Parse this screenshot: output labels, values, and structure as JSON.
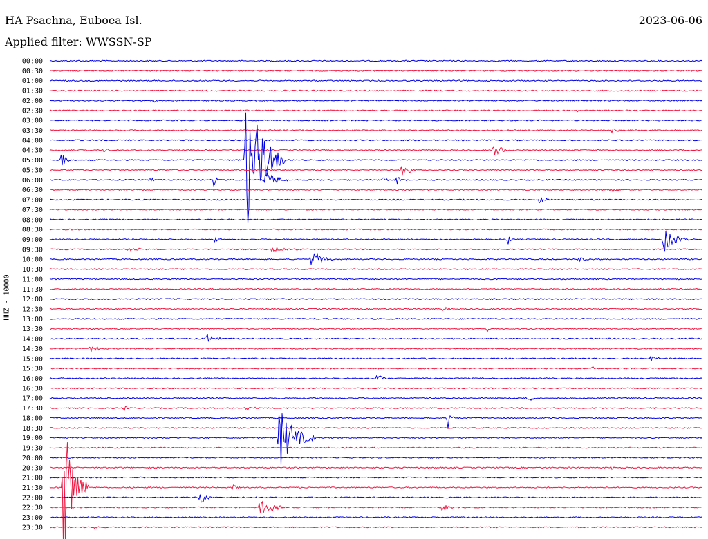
{
  "header": {
    "station": "HA Psachna, Euboea Isl.",
    "filter_label": "Applied filter:",
    "filter_value": "WWSSN-SP",
    "date": "2023-06-06"
  },
  "colors": {
    "even_trace": "#0000e6",
    "odd_trace": "#f0153f"
  },
  "chart_data": {
    "type": "line",
    "title": "HA Psachna, Euboea Isl.",
    "ylabel": "HHZ - 10000",
    "tick_labels": [
      "00:00",
      "00:30",
      "01:00",
      "01:30",
      "02:00",
      "02:30",
      "03:00",
      "03:30",
      "04:00",
      "04:30",
      "05:00",
      "05:30",
      "06:00",
      "06:30",
      "07:00",
      "07:30",
      "08:00",
      "08:30",
      "09:00",
      "09:30",
      "10:00",
      "10:30",
      "11:00",
      "11:30",
      "12:00",
      "12:30",
      "13:00",
      "13:30",
      "14:00",
      "14:30",
      "15:00",
      "15:30",
      "16:00",
      "16:30",
      "17:00",
      "17:30",
      "18:00",
      "18:30",
      "19:00",
      "19:30",
      "20:00",
      "20:30",
      "21:00",
      "21:30",
      "22:00",
      "22:30",
      "23:00",
      "23:30"
    ],
    "events": [
      {
        "row": 0,
        "t": 0.04,
        "amp": 3,
        "len": 0.01
      },
      {
        "row": 4,
        "t": 0.16,
        "amp": 6,
        "len": 0.01
      },
      {
        "row": 5,
        "t": 0.81,
        "amp": 5,
        "len": 0.01
      },
      {
        "row": 7,
        "t": 0.86,
        "amp": 4,
        "len": 0.04
      },
      {
        "row": 6,
        "t": 0.93,
        "amp": 4,
        "len": 0.01
      },
      {
        "row": 9,
        "t": 0.08,
        "amp": 3,
        "len": 0.03
      },
      {
        "row": 9,
        "t": 0.68,
        "amp": 12,
        "len": 0.03
      },
      {
        "row": 10,
        "t": 0.015,
        "amp": 18,
        "len": 0.02
      },
      {
        "row": 10,
        "t": 0.3,
        "amp": 120,
        "len": 0.06
      },
      {
        "row": 11,
        "t": 0.54,
        "amp": 16,
        "len": 0.02
      },
      {
        "row": 12,
        "t": 0.15,
        "amp": 5,
        "len": 0.02
      },
      {
        "row": 12,
        "t": 0.25,
        "amp": 14,
        "len": 0.01
      },
      {
        "row": 12,
        "t": 0.33,
        "amp": 18,
        "len": 0.04
      },
      {
        "row": 12,
        "t": 0.51,
        "amp": 6,
        "len": 0.01
      },
      {
        "row": 12,
        "t": 0.53,
        "amp": 8,
        "len": 0.03
      },
      {
        "row": 13,
        "t": 0.86,
        "amp": 5,
        "len": 0.02
      },
      {
        "row": 14,
        "t": 0.75,
        "amp": 5,
        "len": 0.03
      },
      {
        "row": 18,
        "t": 0.25,
        "amp": 5,
        "len": 0.02
      },
      {
        "row": 18,
        "t": 0.7,
        "amp": 18,
        "len": 0.01
      },
      {
        "row": 18,
        "t": 0.94,
        "amp": 20,
        "len": 0.04
      },
      {
        "row": 19,
        "t": 0.12,
        "amp": 5,
        "len": 0.04
      },
      {
        "row": 19,
        "t": 0.34,
        "amp": 4,
        "len": 0.06
      },
      {
        "row": 20,
        "t": 0.4,
        "amp": 14,
        "len": 0.04
      },
      {
        "row": 20,
        "t": 0.81,
        "amp": 4,
        "len": 0.04
      },
      {
        "row": 25,
        "t": 0.6,
        "amp": 4,
        "len": 0.03
      },
      {
        "row": 25,
        "t": 0.96,
        "amp": 4,
        "len": 0.02
      },
      {
        "row": 27,
        "t": 0.67,
        "amp": 4,
        "len": 0.01
      },
      {
        "row": 28,
        "t": 0.24,
        "amp": 8,
        "len": 0.03
      },
      {
        "row": 29,
        "t": 0.06,
        "amp": 6,
        "len": 0.03
      },
      {
        "row": 30,
        "t": 0.57,
        "amp": 3,
        "len": 0.02
      },
      {
        "row": 30,
        "t": 0.92,
        "amp": 5,
        "len": 0.03
      },
      {
        "row": 31,
        "t": 0.83,
        "amp": 4,
        "len": 0.01
      },
      {
        "row": 32,
        "t": 0.5,
        "amp": 6,
        "len": 0.03
      },
      {
        "row": 34,
        "t": 0.73,
        "amp": 7,
        "len": 0.02
      },
      {
        "row": 35,
        "t": 0.11,
        "amp": 5,
        "len": 0.02
      },
      {
        "row": 35,
        "t": 0.3,
        "amp": 5,
        "len": 0.02
      },
      {
        "row": 36,
        "t": 0.61,
        "amp": 16,
        "len": 0.01
      },
      {
        "row": 38,
        "t": 0.35,
        "amp": 50,
        "len": 0.06
      },
      {
        "row": 40,
        "t": 0.7,
        "amp": 3,
        "len": 0.01
      },
      {
        "row": 41,
        "t": 0.86,
        "amp": 4,
        "len": 0.01
      },
      {
        "row": 43,
        "t": 0.02,
        "amp": 110,
        "len": 0.04
      },
      {
        "row": 43,
        "t": 0.28,
        "amp": 8,
        "len": 0.01
      },
      {
        "row": 44,
        "t": 0.23,
        "amp": 12,
        "len": 0.02
      },
      {
        "row": 45,
        "t": 0.32,
        "amp": 14,
        "len": 0.05
      },
      {
        "row": 45,
        "t": 0.6,
        "amp": 9,
        "len": 0.02
      },
      {
        "row": 47,
        "t": 0.07,
        "amp": 4,
        "len": 0.01
      }
    ]
  }
}
